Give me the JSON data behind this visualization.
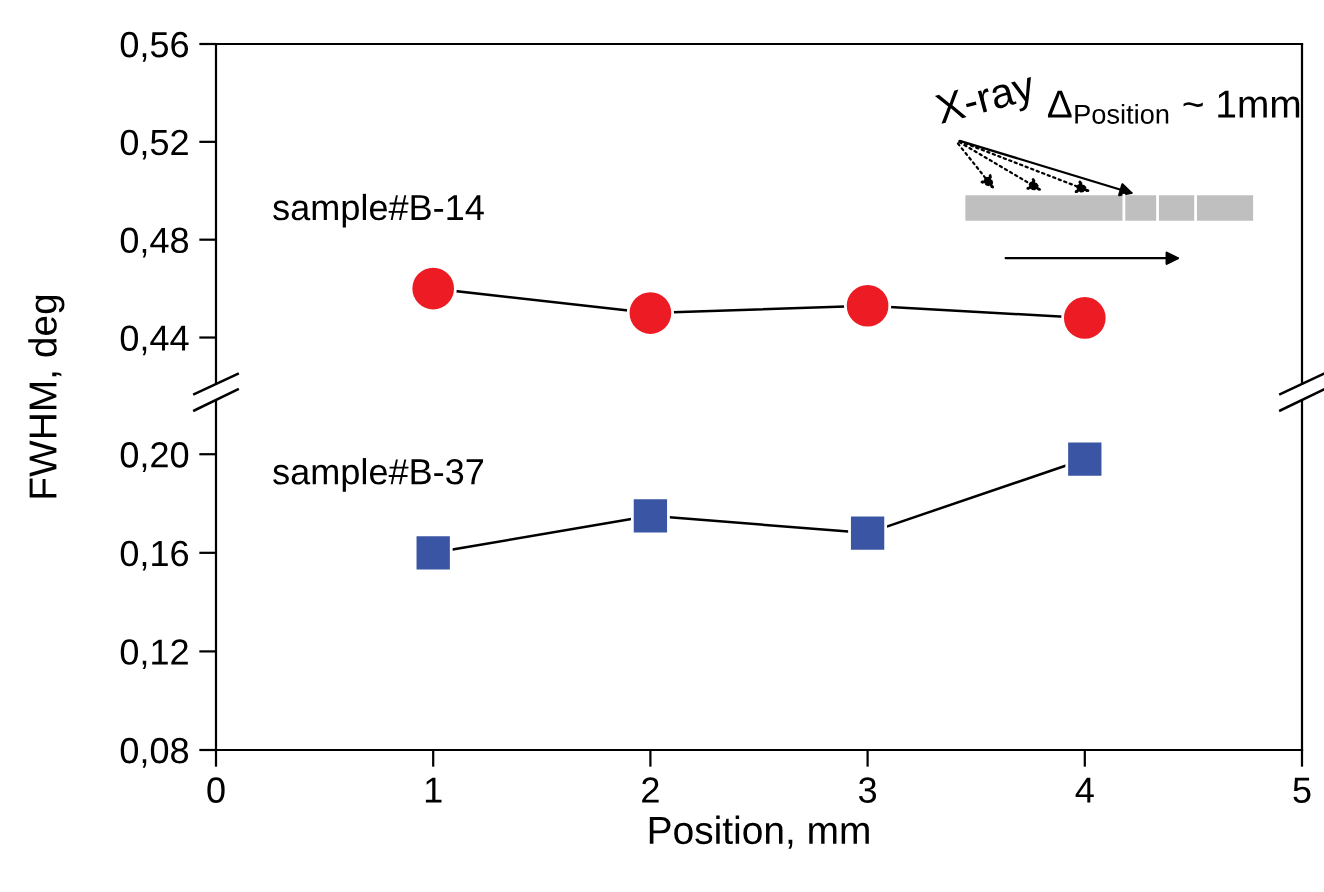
{
  "chart_data": [
    {
      "type": "line",
      "ylabel": "FWHM, deg",
      "x": [
        1,
        2,
        3,
        4
      ],
      "xlim": [
        0,
        5
      ],
      "xticks": [
        0,
        1,
        2,
        3,
        4,
        5
      ],
      "ylim": [
        0.421,
        0.56
      ],
      "yticks": [
        {
          "value": 0.44,
          "label": "0,44"
        },
        {
          "value": 0.48,
          "label": "0,48"
        },
        {
          "value": 0.52,
          "label": "0,52"
        },
        {
          "value": 0.56,
          "label": "0,56"
        }
      ],
      "tick_labels": "y",
      "marker": "circle",
      "grid": false,
      "legend": false,
      "series": [
        {
          "name": "sample#B-14",
          "color": "#ed1c24",
          "values": [
            0.46,
            0.45,
            0.453,
            0.448
          ]
        }
      ],
      "annotations": [
        "X-ray",
        "Δ$_{Position}$ ~ 1mm"
      ]
    },
    {
      "type": "line",
      "xlabel": "Position, mm",
      "x": [
        1,
        2,
        3,
        4
      ],
      "xlim": [
        0,
        5
      ],
      "xticks": [
        0,
        1,
        2,
        3,
        4,
        5
      ],
      "ylim": [
        0.08,
        0.222
      ],
      "yticks": [
        {
          "value": 0.08,
          "label": "0,08"
        },
        {
          "value": 0.12,
          "label": "0,12"
        },
        {
          "value": 0.16,
          "label": "0,16"
        },
        {
          "value": 0.2,
          "label": "0,20"
        }
      ],
      "marker": "square",
      "grid": false,
      "legend": false,
      "series": [
        {
          "name": "sample#B-37",
          "color": "#3a55a4",
          "values": [
            0.16,
            0.175,
            0.168,
            0.198
          ]
        }
      ]
    }
  ]
}
